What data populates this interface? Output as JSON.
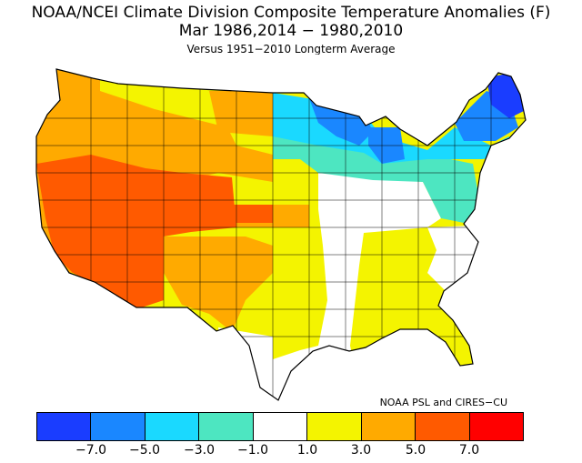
{
  "title": "NOAA/NCEI Climate Division Composite Temperature Anomalies (F)",
  "subtitle": "Mar  1986,2014 − 1980,2010",
  "baseline": "Versus 1951−2010 Longterm Average",
  "credit": "NOAA PSL and CIRES−CU",
  "legend": {
    "colors": [
      "#1a3dff",
      "#1a87ff",
      "#1ad9ff",
      "#4de6c1",
      "#ffffff",
      "#f4f400",
      "#ffaa00",
      "#ff5a00",
      "#ff0000"
    ],
    "ticks": [
      "−7.0",
      "−5.0",
      "−3.0",
      "−1.0",
      "1.0",
      "3.0",
      "5.0",
      "7.0"
    ]
  },
  "regions": [
    {
      "name": "southwest",
      "anomaly_bin": "5 to 7",
      "color": "#ff5a00"
    },
    {
      "name": "west-coast-and-texas",
      "anomaly_bin": "3 to 5",
      "color": "#ffaa00"
    },
    {
      "name": "plains-and-southeast",
      "anomaly_bin": "1 to 3",
      "color": "#f4f400"
    },
    {
      "name": "mid-south-and-gulf",
      "anomaly_bin": "-1 to 1",
      "color": "#ffffff"
    },
    {
      "name": "ohio-valley-and-midwest",
      "anomaly_bin": "-3 to -1",
      "color": "#4de6c1"
    },
    {
      "name": "great-lakes",
      "anomaly_bin": "-5 to -3",
      "color": "#1ad9ff"
    },
    {
      "name": "upper-midwest-and-northeast",
      "anomaly_bin": "-7 to -5",
      "color": "#1a87ff"
    },
    {
      "name": "northern-maine",
      "anomaly_bin": "below -7",
      "color": "#1a3dff"
    }
  ]
}
